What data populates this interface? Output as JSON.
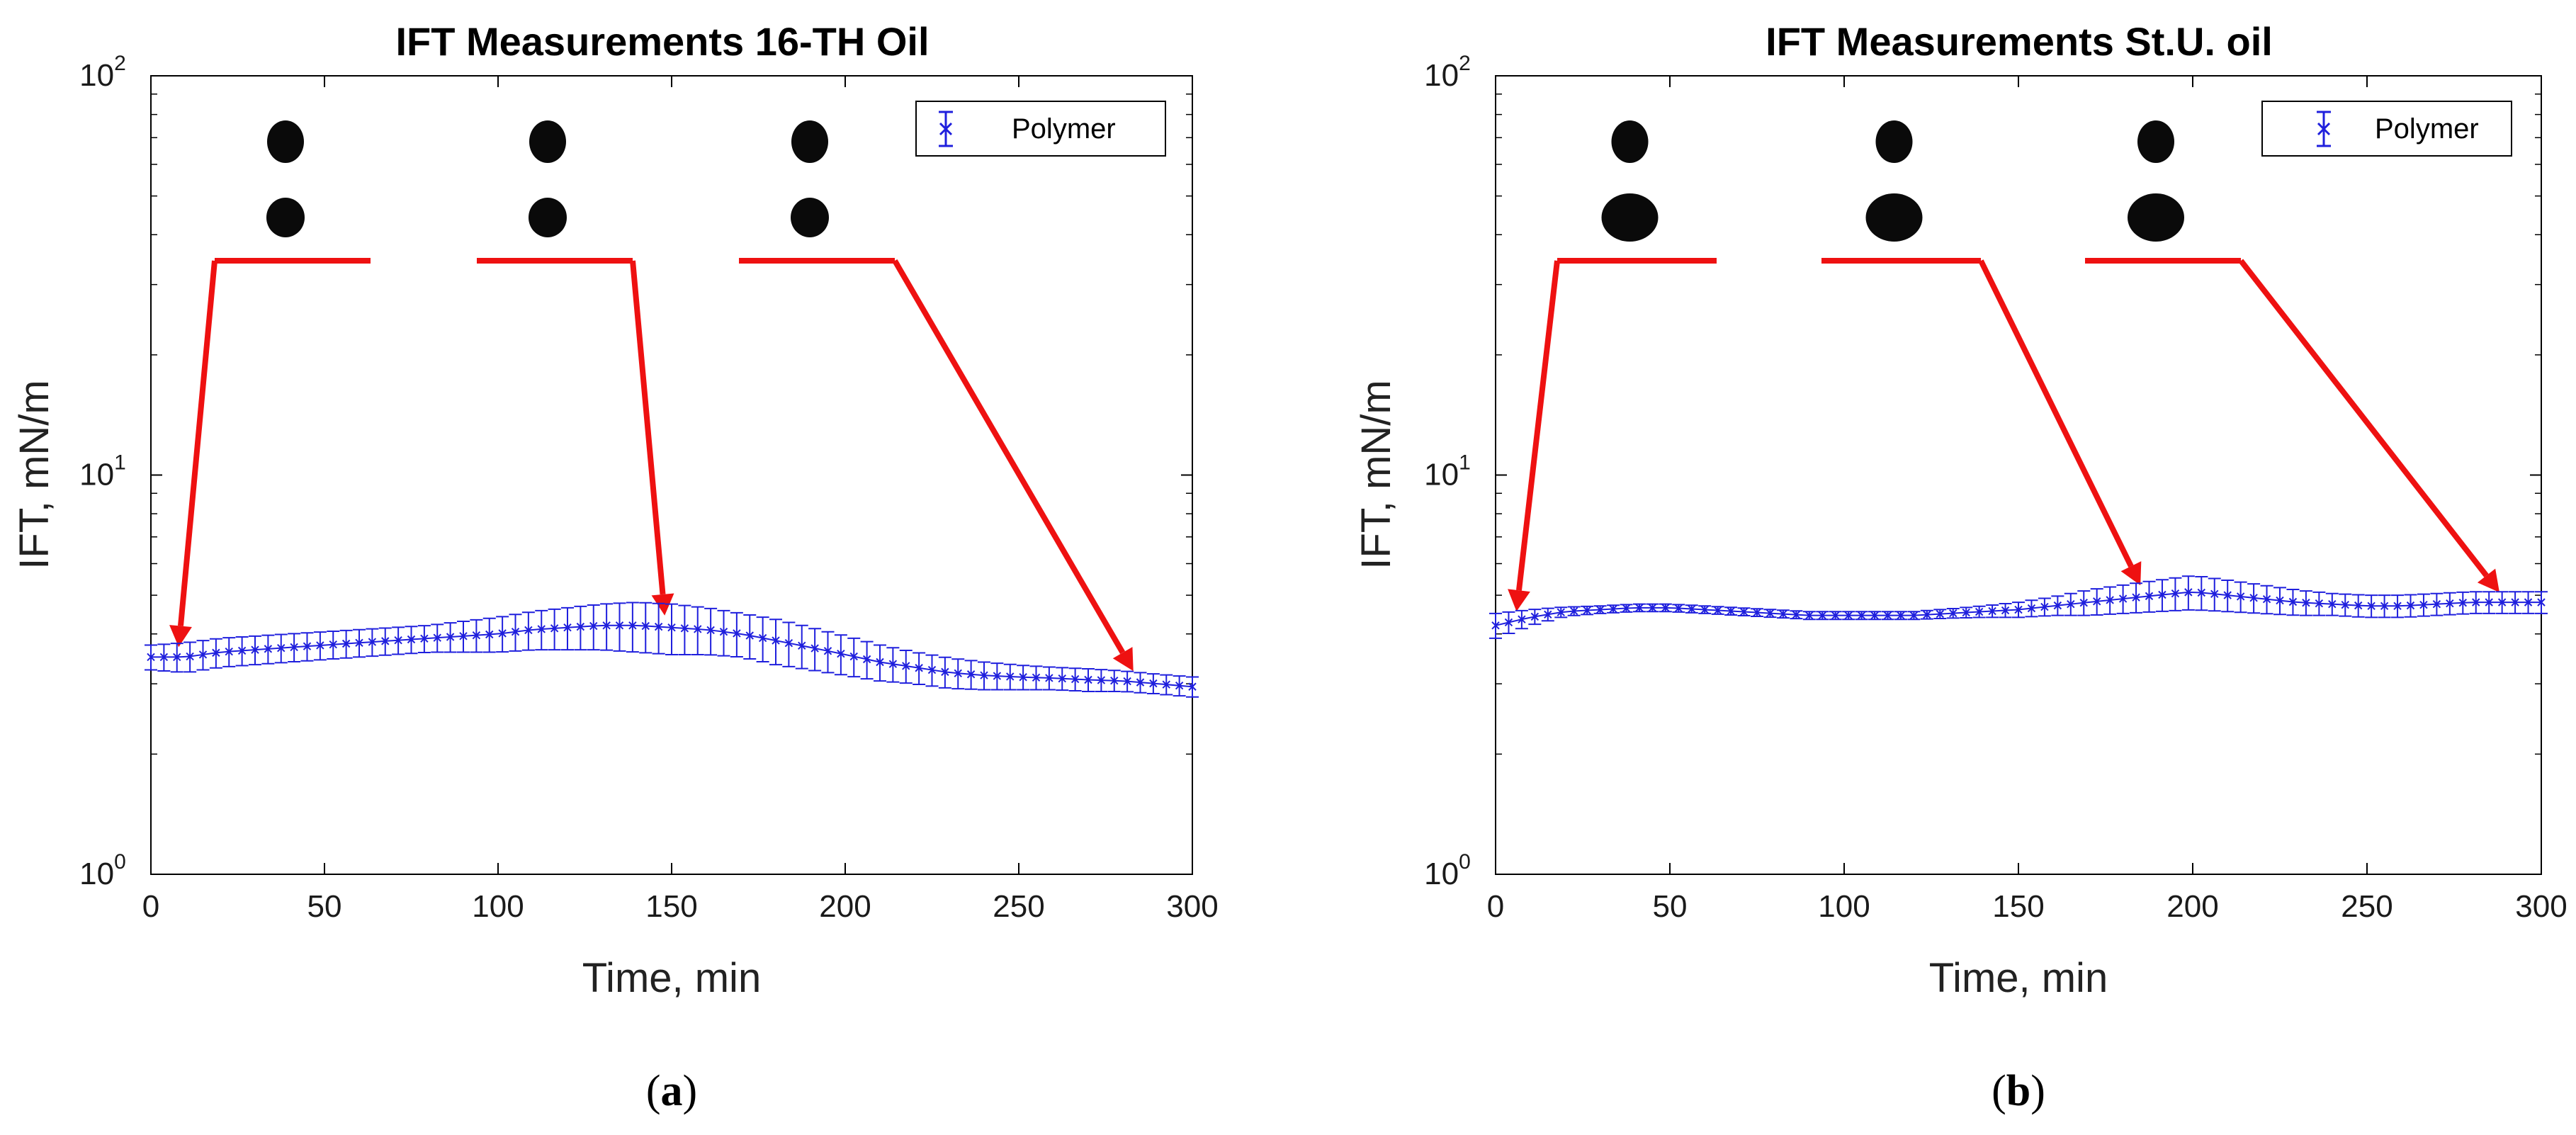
{
  "figure": {
    "captions": [
      "(a)",
      "(b)"
    ]
  },
  "chart_data": [
    {
      "type": "line",
      "title": "IFT Measurements 16-TH Oil",
      "xlabel": "Time, min",
      "ylabel": "IFT, mN/m",
      "xlim": [
        0,
        300
      ],
      "ylim": [
        1,
        100
      ],
      "yscale": "log",
      "xticks": [
        "0",
        "50",
        "100",
        "150",
        "200",
        "250",
        "300"
      ],
      "yticks": [
        {
          "base": "10",
          "exp": "0"
        },
        {
          "base": "10",
          "exp": "1"
        },
        {
          "base": "10",
          "exp": "2"
        }
      ],
      "legend": {
        "label": "Polymer",
        "position": "top-right"
      },
      "marker": "x",
      "color": "#1f1fdd",
      "annotation_color": "#ee1111",
      "series": [
        {
          "name": "Polymer",
          "x": [
            0,
            10,
            20,
            30,
            40,
            50,
            60,
            70,
            80,
            90,
            100,
            110,
            120,
            130,
            140,
            150,
            160,
            170,
            180,
            190,
            200,
            210,
            220,
            230,
            240,
            250,
            260,
            270,
            280,
            290,
            300
          ],
          "y": [
            3.5,
            3.5,
            3.6,
            3.65,
            3.7,
            3.75,
            3.8,
            3.85,
            3.9,
            3.95,
            4.0,
            4.1,
            4.15,
            4.2,
            4.2,
            4.15,
            4.1,
            4.0,
            3.85,
            3.7,
            3.55,
            3.4,
            3.3,
            3.2,
            3.15,
            3.12,
            3.1,
            3.07,
            3.05,
            3.0,
            2.95
          ],
          "err": [
            0.25,
            0.3,
            0.3,
            0.3,
            0.3,
            0.3,
            0.3,
            0.3,
            0.3,
            0.35,
            0.4,
            0.45,
            0.5,
            0.55,
            0.6,
            0.6,
            0.55,
            0.5,
            0.5,
            0.45,
            0.4,
            0.35,
            0.3,
            0.28,
            0.25,
            0.22,
            0.2,
            0.2,
            0.18,
            0.17,
            0.17
          ]
        }
      ],
      "droplets": [
        {
          "top": "small",
          "bottom": "small"
        },
        {
          "top": "small",
          "bottom": "small"
        },
        {
          "top": "small",
          "bottom": "small"
        }
      ],
      "arrow_targets": [
        {
          "x": 8,
          "y": 3.5
        },
        {
          "x": 148,
          "y": 4.2
        },
        {
          "x": 283,
          "y": 3.05
        }
      ]
    },
    {
      "type": "line",
      "title": "IFT Measurements St.U. oil",
      "xlabel": "Time, min",
      "ylabel": "IFT, mN/m",
      "xlim": [
        0,
        300
      ],
      "ylim": [
        1,
        100
      ],
      "yscale": "log",
      "xticks": [
        "0",
        "50",
        "100",
        "150",
        "200",
        "250",
        "300"
      ],
      "yticks": [
        {
          "base": "10",
          "exp": "0"
        },
        {
          "base": "10",
          "exp": "1"
        },
        {
          "base": "10",
          "exp": "2"
        }
      ],
      "legend": {
        "label": "Polymer",
        "position": "top-right"
      },
      "marker": "x",
      "color": "#1f1fdd",
      "annotation_color": "#ee1111",
      "series": [
        {
          "name": "Polymer",
          "x": [
            0,
            10,
            20,
            30,
            40,
            50,
            60,
            70,
            80,
            90,
            100,
            110,
            120,
            130,
            140,
            150,
            160,
            170,
            180,
            190,
            200,
            210,
            220,
            230,
            240,
            250,
            260,
            270,
            280,
            290,
            300
          ],
          "y": [
            4.2,
            4.4,
            4.55,
            4.6,
            4.65,
            4.65,
            4.6,
            4.55,
            4.5,
            4.45,
            4.45,
            4.45,
            4.45,
            4.5,
            4.55,
            4.6,
            4.7,
            4.8,
            4.9,
            5.0,
            5.1,
            5.0,
            4.9,
            4.8,
            4.75,
            4.7,
            4.7,
            4.75,
            4.8,
            4.8,
            4.8
          ],
          "err": [
            0.3,
            0.2,
            0.12,
            0.1,
            0.1,
            0.1,
            0.1,
            0.1,
            0.1,
            0.1,
            0.1,
            0.1,
            0.1,
            0.12,
            0.15,
            0.2,
            0.25,
            0.35,
            0.4,
            0.45,
            0.5,
            0.45,
            0.4,
            0.35,
            0.3,
            0.3,
            0.3,
            0.3,
            0.3,
            0.3,
            0.3
          ]
        }
      ],
      "droplets": [
        {
          "top": "small",
          "bottom": "large"
        },
        {
          "top": "small",
          "bottom": "large"
        },
        {
          "top": "small",
          "bottom": "large"
        }
      ],
      "arrow_targets": [
        {
          "x": 6,
          "y": 4.3
        },
        {
          "x": 185,
          "y": 5.0
        },
        {
          "x": 288,
          "y": 4.8
        }
      ]
    }
  ]
}
